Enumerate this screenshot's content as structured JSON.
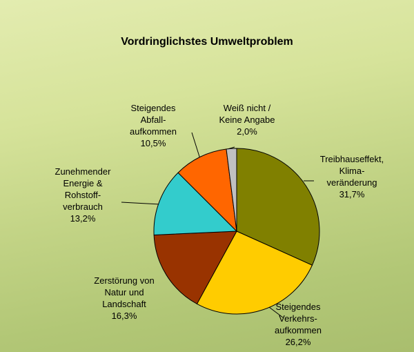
{
  "chart_data": {
    "type": "pie",
    "title": "Vordringlichstes Umweltproblem",
    "categories": [
      "Treibhauseffekt,\nKlima-\nveränderung",
      "Steigendes\nVerkehrs-\naufkommen",
      "Zerstörung von\nNatur und\nLandschaft",
      "Zunehmender\nEnergie &\nRohstoff-\nverbrauch",
      "Steigendes\nAbfall-\naufkommen",
      "Weiß nicht /\nKeine Angabe"
    ],
    "values": [
      31.7,
      26.2,
      16.3,
      13.2,
      10.5,
      2.0
    ],
    "value_labels": [
      "31,7%",
      "26,2%",
      "16,3%",
      "13,2%",
      "10,5%",
      "2,0%"
    ],
    "colors": [
      "#808000",
      "#ffcc00",
      "#993300",
      "#33cccc",
      "#ff6600",
      "#c0c0c0"
    ]
  }
}
